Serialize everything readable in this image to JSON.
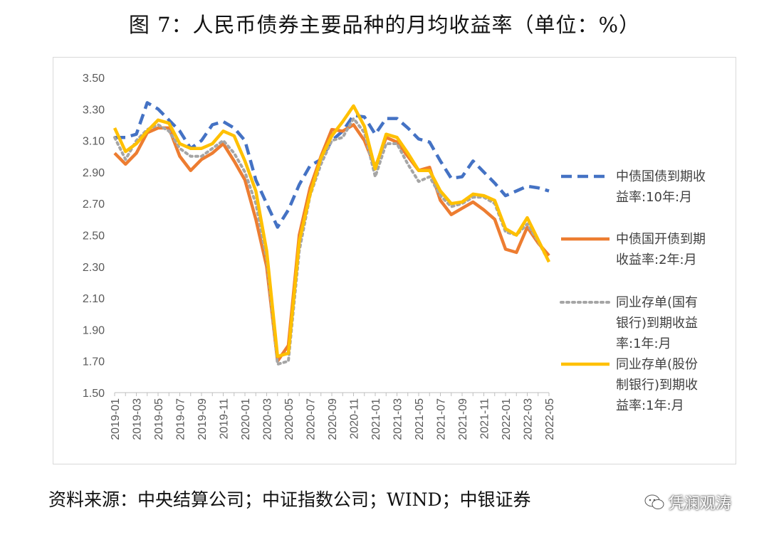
{
  "header": {
    "title": "图 7：人民币债券主要品种的月均收益率（单位：%）"
  },
  "footer": {
    "source": "资料来源：中央结算公司；中证指数公司；WIND；中银证券",
    "watermark": "凭澜观涛"
  },
  "chart_data": {
    "type": "line",
    "title": "图 7：人民币债券主要品种的月均收益率（单位：%）",
    "xlabel": "",
    "ylabel": "",
    "ylim": [
      1.5,
      3.5
    ],
    "yticks": [
      "3.50",
      "3.30",
      "3.10",
      "2.90",
      "2.70",
      "2.50",
      "2.30",
      "2.10",
      "1.90",
      "1.70",
      "1.50"
    ],
    "xticks": [
      "2019-01",
      "2019-03",
      "2019-05",
      "2019-07",
      "2019-09",
      "2019-11",
      "2020-01",
      "2020-03",
      "2020-05",
      "2020-07",
      "2020-09",
      "2020-11",
      "2021-01",
      "2021-03",
      "2021-05",
      "2021-07",
      "2021-09",
      "2021-11",
      "2022-01",
      "2022-03",
      "2022-05"
    ],
    "grid": false,
    "legend_position": "right",
    "x": [
      "2019-01",
      "2019-02",
      "2019-03",
      "2019-04",
      "2019-05",
      "2019-06",
      "2019-07",
      "2019-08",
      "2019-09",
      "2019-10",
      "2019-11",
      "2019-12",
      "2020-01",
      "2020-02",
      "2020-03",
      "2020-04",
      "2020-05",
      "2020-06",
      "2020-07",
      "2020-08",
      "2020-09",
      "2020-10",
      "2020-11",
      "2020-12",
      "2021-01",
      "2021-02",
      "2021-03",
      "2021-04",
      "2021-05",
      "2021-06",
      "2021-07",
      "2021-08",
      "2021-09",
      "2021-10",
      "2021-11",
      "2021-12",
      "2022-01",
      "2022-02",
      "2022-03",
      "2022-04",
      "2022-05"
    ],
    "series": [
      {
        "name": "中债国债到期收益率:10年:月",
        "color": "#4472c4",
        "style": "dashed",
        "values": [
          3.12,
          3.12,
          3.14,
          3.34,
          3.3,
          3.23,
          3.16,
          3.05,
          3.1,
          3.2,
          3.22,
          3.18,
          3.1,
          2.85,
          2.7,
          2.55,
          2.66,
          2.82,
          2.94,
          2.98,
          3.1,
          3.16,
          3.26,
          3.25,
          3.14,
          3.24,
          3.24,
          3.18,
          3.11,
          3.09,
          2.97,
          2.86,
          2.87,
          2.97,
          2.9,
          2.83,
          2.75,
          2.78,
          2.81,
          2.8,
          2.78
        ]
      },
      {
        "name": "中债国开债到期收益率:2年:月",
        "color": "#ed7d31",
        "style": "solid",
        "values": [
          3.02,
          2.95,
          3.02,
          3.15,
          3.18,
          3.18,
          3.0,
          2.91,
          2.98,
          3.02,
          3.08,
          2.97,
          2.85,
          2.6,
          2.3,
          1.7,
          1.8,
          2.5,
          2.8,
          3.0,
          3.17,
          3.16,
          3.2,
          3.1,
          2.93,
          3.12,
          3.09,
          3.0,
          2.91,
          2.93,
          2.72,
          2.63,
          2.67,
          2.71,
          2.66,
          2.6,
          2.41,
          2.39,
          2.55,
          2.45,
          2.37
        ]
      },
      {
        "name": "同业存单(国有银行)到期收益率:1年:月",
        "color": "#a5a5a5",
        "style": "dotted",
        "values": [
          3.12,
          2.98,
          3.1,
          3.17,
          3.2,
          3.16,
          3.05,
          3.0,
          3.0,
          3.05,
          3.1,
          3.02,
          2.9,
          2.7,
          2.35,
          1.68,
          1.7,
          2.4,
          2.75,
          2.95,
          3.1,
          3.12,
          3.24,
          3.15,
          2.87,
          3.08,
          3.08,
          2.95,
          2.84,
          2.87,
          2.75,
          2.68,
          2.7,
          2.74,
          2.74,
          2.7,
          2.52,
          2.5,
          2.57,
          2.46,
          2.33
        ]
      },
      {
        "name": "同业存单(股份制银行)到期收益率:1年:月",
        "color": "#ffc000",
        "style": "solid",
        "values": [
          3.18,
          3.03,
          3.08,
          3.16,
          3.23,
          3.21,
          3.08,
          3.05,
          3.05,
          3.08,
          3.16,
          3.13,
          2.97,
          2.78,
          2.4,
          1.73,
          1.75,
          2.46,
          2.76,
          2.99,
          3.13,
          3.22,
          3.32,
          3.19,
          2.92,
          3.14,
          3.12,
          3.02,
          2.91,
          2.91,
          2.78,
          2.7,
          2.71,
          2.76,
          2.75,
          2.72,
          2.54,
          2.5,
          2.61,
          2.47,
          2.33
        ]
      }
    ]
  },
  "legend": {
    "items": [
      {
        "lines": [
          "中债国债到期收",
          "益率:10年:月"
        ]
      },
      {
        "lines": [
          "中债国开债到期",
          "收益率:2年:月"
        ]
      },
      {
        "lines": [
          "同业存单(国有",
          "银行)到期收益",
          "率:1年:月"
        ]
      },
      {
        "lines": [
          "同业存单(股份",
          "制银行)到期收",
          "益率:1年:月"
        ]
      }
    ]
  }
}
